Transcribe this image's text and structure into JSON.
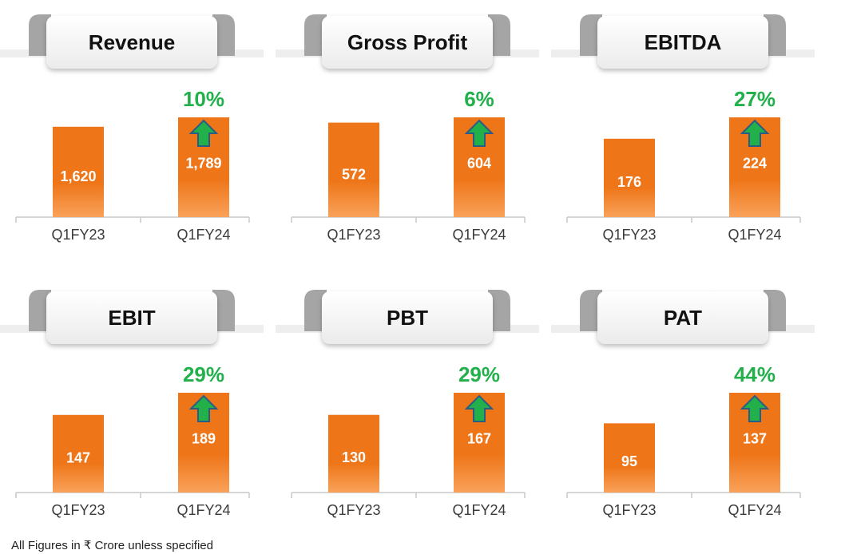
{
  "colors": {
    "bar": "#ee7518",
    "bar_light": "#f9a25a",
    "growth": "#22b04b",
    "arrow_border": "#2b5c86",
    "header_fill": "#f4f4f4",
    "tab_grey": "#a5a5a5"
  },
  "footnote": "All Figures in ₹ Crore unless specified",
  "chart_data": [
    {
      "type": "bar",
      "title": "Revenue",
      "categories": [
        "Q1FY23",
        "Q1FY24"
      ],
      "values": [
        1620,
        1789
      ],
      "value_labels": [
        "1,620",
        "1,789"
      ],
      "growth": "10%",
      "growth_icon": "up-arrow-icon"
    },
    {
      "type": "bar",
      "title": "Gross Profit",
      "categories": [
        "Q1FY23",
        "Q1FY24"
      ],
      "values": [
        572,
        604
      ],
      "value_labels": [
        "572",
        "604"
      ],
      "growth": "6%",
      "growth_icon": "up-arrow-icon"
    },
    {
      "type": "bar",
      "title": "EBITDA",
      "categories": [
        "Q1FY23",
        "Q1FY24"
      ],
      "values": [
        176,
        224
      ],
      "value_labels": [
        "176",
        "224"
      ],
      "growth": "27%",
      "growth_icon": "up-arrow-icon"
    },
    {
      "type": "bar",
      "title": "EBIT",
      "categories": [
        "Q1FY23",
        "Q1FY24"
      ],
      "values": [
        147,
        189
      ],
      "value_labels": [
        "147",
        "189"
      ],
      "growth": "29%",
      "growth_icon": "up-arrow-icon"
    },
    {
      "type": "bar",
      "title": "PBT",
      "categories": [
        "Q1FY23",
        "Q1FY24"
      ],
      "values": [
        130,
        167
      ],
      "value_labels": [
        "130",
        "167"
      ],
      "growth": "29%",
      "growth_icon": "up-arrow-icon"
    },
    {
      "type": "bar",
      "title": "PAT",
      "categories": [
        "Q1FY23",
        "Q1FY24"
      ],
      "values": [
        95,
        137
      ],
      "value_labels": [
        "95",
        "137"
      ],
      "growth": "44%",
      "growth_icon": "up-arrow-icon"
    }
  ]
}
